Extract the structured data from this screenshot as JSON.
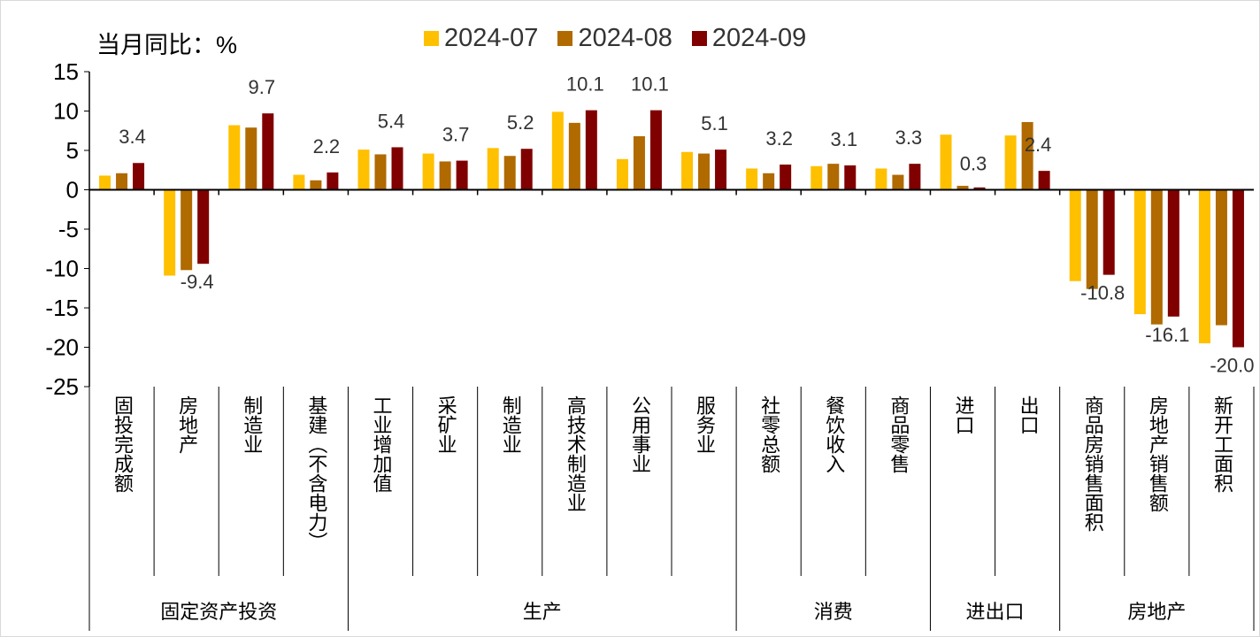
{
  "chart_data": {
    "type": "bar",
    "unit_label": "当月同比：%",
    "categories": [
      "固投完成额",
      "房地产",
      "制造业",
      "基建（不含电力）",
      "工业增加值",
      "采矿业",
      "制造业",
      "高技术制造业",
      "公用事业",
      "服务业",
      "社零总额",
      "餐饮收入",
      "商品零售",
      "进口",
      "出口",
      "商品房销售面积",
      "房地产销售额",
      "新开工面积"
    ],
    "groups": [
      {
        "label": "固定资产投资",
        "span": 4
      },
      {
        "label": "生产",
        "span": 6
      },
      {
        "label": "消费",
        "span": 3
      },
      {
        "label": "进出口",
        "span": 2
      },
      {
        "label": "房地产",
        "span": 3
      }
    ],
    "series": [
      {
        "name": "2024-07",
        "color": "#FFC000",
        "values": [
          1.8,
          -10.9,
          8.2,
          1.9,
          5.1,
          4.6,
          5.3,
          9.9,
          3.9,
          4.8,
          2.7,
          3.0,
          2.7,
          7.0,
          6.9,
          -11.6,
          -15.8,
          -19.5
        ]
      },
      {
        "name": "2024-08",
        "color": "#B06A00",
        "values": [
          2.1,
          -10.2,
          7.9,
          1.2,
          4.5,
          3.6,
          4.3,
          8.5,
          6.8,
          4.6,
          2.1,
          3.3,
          1.9,
          0.5,
          8.6,
          -12.6,
          -17.1,
          -17.2
        ]
      },
      {
        "name": "2024-09",
        "color": "#800000",
        "values": [
          3.4,
          -9.4,
          9.7,
          2.2,
          5.4,
          3.7,
          5.2,
          10.1,
          10.1,
          5.1,
          3.2,
          3.1,
          3.3,
          0.3,
          2.4,
          -10.8,
          -16.1,
          -20.0
        ]
      }
    ],
    "data_labels": [
      "3.4",
      "-9.4",
      "9.7",
      "2.2",
      "5.4",
      "3.7",
      "5.2",
      "10.1",
      "10.1",
      "5.1",
      "3.2",
      "3.1",
      "3.3",
      "0.3",
      "2.4",
      "-10.8",
      "-16.1",
      "-20.0"
    ],
    "ylim": [
      -25,
      15
    ],
    "yticks": [
      "15",
      "10",
      "5",
      "0",
      "-5",
      "-10",
      "-15",
      "-20",
      "-25"
    ],
    "grid": false,
    "legend_position": "top"
  }
}
